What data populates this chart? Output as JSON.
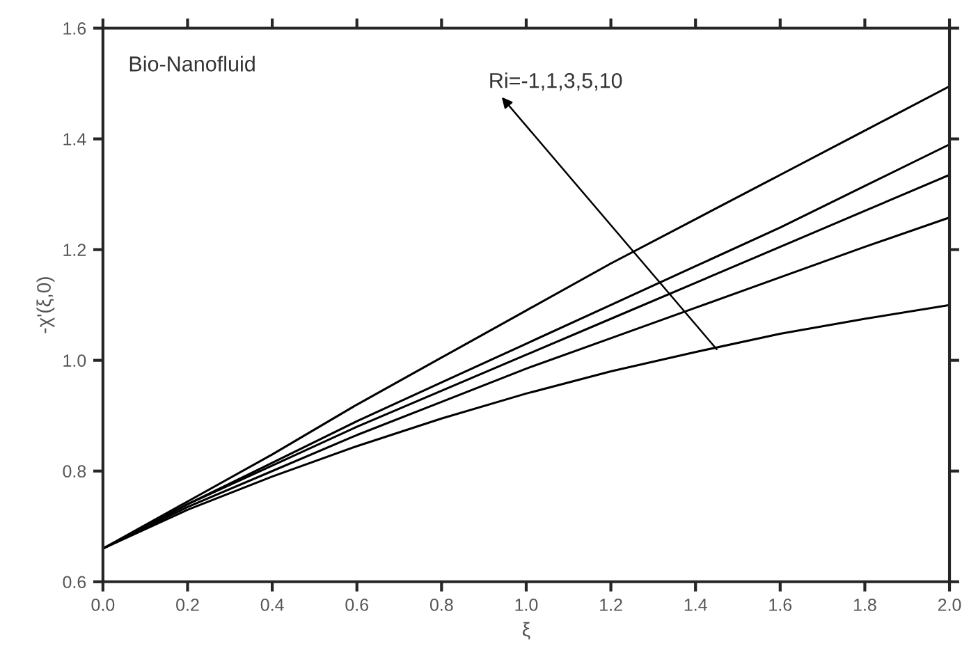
{
  "chart_data": {
    "type": "line",
    "xlabel": "ξ",
    "ylabel": "-χ'(ξ,0)",
    "x": [
      0,
      0.2,
      0.4,
      0.6,
      0.8,
      1.0,
      1.2,
      1.4,
      1.6,
      1.8,
      2.0
    ],
    "series": [
      {
        "color": "#000000",
        "values": [
          0.66,
          0.745,
          0.83,
          0.92,
          1.005,
          1.09,
          1.175,
          1.255,
          1.335,
          1.415,
          1.495
        ]
      },
      {
        "color": "#000000",
        "values": [
          0.66,
          0.74,
          0.815,
          0.89,
          0.96,
          1.03,
          1.1,
          1.17,
          1.24,
          1.315,
          1.39
        ]
      },
      {
        "color": "#000000",
        "values": [
          0.66,
          0.74,
          0.81,
          0.88,
          0.945,
          1.01,
          1.075,
          1.14,
          1.205,
          1.27,
          1.335
        ]
      },
      {
        "color": "#000000",
        "values": [
          0.66,
          0.735,
          0.8,
          0.865,
          0.925,
          0.985,
          1.04,
          1.095,
          1.15,
          1.205,
          1.258
        ]
      },
      {
        "color": "#000000",
        "values": [
          0.66,
          0.73,
          0.79,
          0.845,
          0.895,
          0.94,
          0.98,
          1.015,
          1.048,
          1.075,
          1.1
        ]
      }
    ],
    "annotations": [
      "Bio-Nanofluid",
      {
        "text": "Ri=-1,1,3,5,10",
        "x": 1.45,
        "y": 1.02
      }
    ],
    "xlim": [
      0,
      2.0
    ],
    "xticks": [
      {
        "value": 0,
        "label": "0.0"
      },
      0.2,
      0.4,
      0.6,
      0.8,
      {
        "value": 1.0,
        "label": "1.0"
      },
      1.2,
      1.4,
      1.6,
      1.8,
      {
        "value": 2.0,
        "label": "2.0"
      }
    ],
    "ylim": [
      0.6,
      1.6
    ],
    "yticks": [
      0.6,
      0.8,
      {
        "value": 1.0,
        "label": "1.0"
      },
      1.2,
      1.4,
      1.6
    ],
    "grid": false,
    "legend": false,
    "marker": "none",
    "line_style": "solid"
  }
}
